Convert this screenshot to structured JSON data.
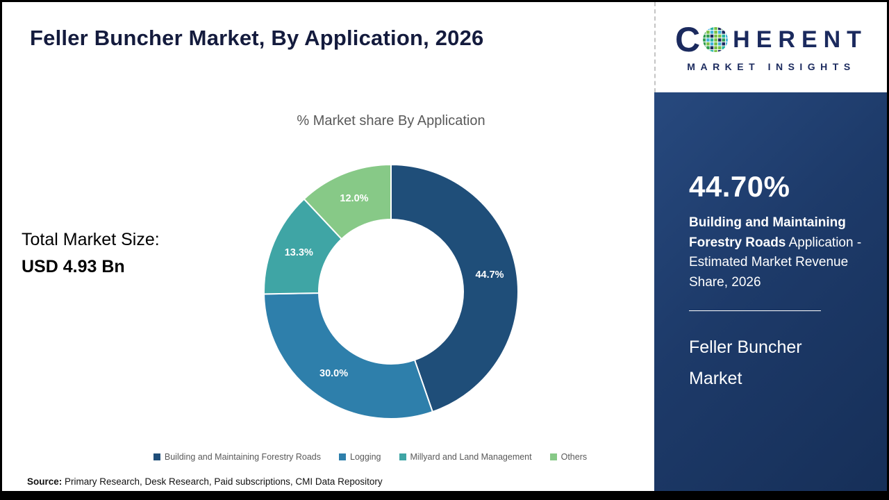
{
  "page": {
    "title": "Feller Buncher Market, By Application, 2026",
    "source_label": "Source:",
    "source_text": " Primary Research, Desk Research, Paid subscriptions, CMI Data Repository"
  },
  "stats": {
    "total_label": "Total Market Size:",
    "total_value": "USD 4.93 Bn"
  },
  "chart_data": {
    "type": "pie",
    "donut": true,
    "title": "% Market share By Application",
    "categories": [
      "Building and Maintaining Forestry Roads",
      "Logging",
      "Millyard and Land Management",
      "Others"
    ],
    "values": [
      44.7,
      30.0,
      13.3,
      12.0
    ],
    "labels": [
      "44.7%",
      "30.0%",
      "13.3%",
      "12.0%"
    ],
    "colors": [
      "#1f4e79",
      "#2e7fab",
      "#3fa5a5",
      "#87c987"
    ],
    "label_color": "#ffffff",
    "legend_position": "bottom",
    "start_angle_deg": 0,
    "direction": "clockwise"
  },
  "sidebar": {
    "highlight_value": "44.70%",
    "highlight_bold": "Building and Maintaining Forestry Roads",
    "highlight_rest": "Application - Estimated Market Revenue Share, 2026",
    "market_name": "Feller Buncher Market",
    "bg_color": "#1d3a69"
  },
  "logo": {
    "brand_c": "C",
    "brand_rest": "HERENT",
    "brand_sub": "MARKET INSIGHTS",
    "globe_icon": "dot-mosaic-globe",
    "brand_color": "#1b2a5e",
    "globe_palette": [
      "#2f9e4f",
      "#27b3a2",
      "#1b2a5e",
      "#3fb3d9",
      "#77c043"
    ]
  }
}
